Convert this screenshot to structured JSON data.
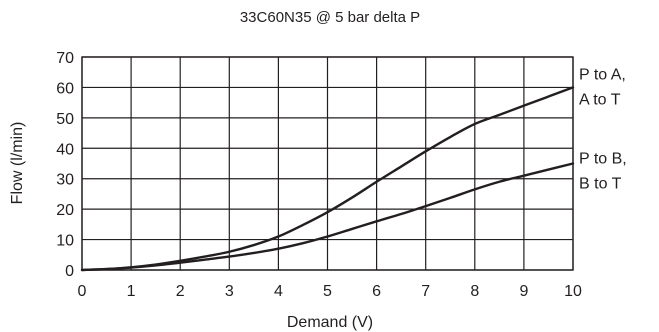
{
  "chart_data": {
    "type": "line",
    "title": "33C60N35  @ 5 bar delta P",
    "xlabel": "Demand (V)",
    "ylabel": "Flow (l/min)",
    "xlim": [
      0,
      10
    ],
    "ylim": [
      0,
      70
    ],
    "x_ticks": [
      "0",
      "1",
      "2",
      "3",
      "4",
      "5",
      "6",
      "7",
      "8",
      "9",
      "10"
    ],
    "y_ticks": [
      "0",
      "10",
      "20",
      "30",
      "40",
      "50",
      "60",
      "70"
    ],
    "grid": true,
    "legend": "inline-right",
    "series": [
      {
        "name": "P to A, A to T",
        "label_lines": [
          "P to A,",
          "A to T"
        ],
        "x": [
          0,
          0.5,
          1,
          1.5,
          2,
          2.5,
          3,
          3.5,
          4,
          4.5,
          5,
          5.5,
          6,
          6.5,
          7,
          7.5,
          8,
          8.5,
          9,
          9.5,
          10
        ],
        "y": [
          0,
          0.3,
          0.9,
          1.8,
          3,
          4.4,
          6,
          8.2,
          11,
          14.8,
          19,
          23.8,
          29,
          34,
          39,
          43.7,
          48,
          51,
          54,
          57,
          60
        ]
      },
      {
        "name": "P to B, B to T",
        "label_lines": [
          "P to B,",
          "B to T"
        ],
        "x": [
          0,
          0.5,
          1,
          1.5,
          2,
          2.5,
          3,
          3.5,
          4,
          4.5,
          5,
          5.5,
          6,
          6.5,
          7,
          7.5,
          8,
          8.5,
          9,
          9.5,
          10
        ],
        "y": [
          0,
          0.3,
          0.8,
          1.5,
          2.4,
          3.4,
          4.4,
          5.6,
          7,
          8.8,
          11,
          13.5,
          16,
          18.4,
          21,
          23.7,
          26.5,
          29,
          31,
          33,
          35
        ]
      }
    ]
  }
}
